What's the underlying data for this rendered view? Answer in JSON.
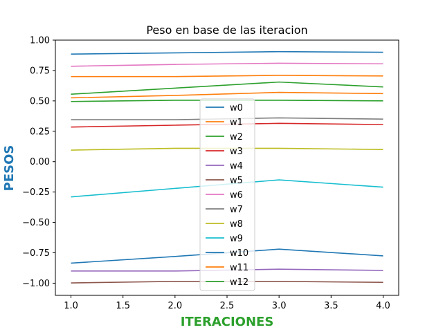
{
  "chart_data": {
    "type": "line",
    "title": "Peso en base de las iteracion",
    "xlabel": "ITERACIONES",
    "ylabel": "PESOS",
    "xlabel_color": "#2ca02c",
    "ylabel_color": "#1f77b4",
    "xlim": [
      0.85,
      4.15
    ],
    "ylim": [
      -1.1,
      1.0
    ],
    "xticks": [
      1.0,
      1.5,
      2.0,
      2.5,
      3.0,
      3.5,
      4.0
    ],
    "xtick_labels": [
      "1.0",
      "1.5",
      "2.0",
      "2.5",
      "3.0",
      "3.5",
      "4.0"
    ],
    "yticks": [
      -1.0,
      -0.75,
      -0.5,
      -0.25,
      0.0,
      0.25,
      0.5,
      0.75,
      1.0
    ],
    "ytick_labels": [
      "−1.00",
      "−0.75",
      "−0.50",
      "−0.25",
      "0.00",
      "0.25",
      "0.50",
      "0.75",
      "1.00"
    ],
    "grid": false,
    "legend_position": "center",
    "x": [
      1,
      2,
      3,
      4
    ],
    "series": [
      {
        "name": "w0",
        "color": "#1f77b4",
        "values": [
          0.885,
          0.895,
          0.905,
          0.9
        ]
      },
      {
        "name": "w1",
        "color": "#ff7f0e",
        "values": [
          0.7,
          0.7,
          0.71,
          0.705
        ]
      },
      {
        "name": "w2",
        "color": "#2ca02c",
        "values": [
          0.555,
          0.605,
          0.655,
          0.615
        ]
      },
      {
        "name": "w3",
        "color": "#d62728",
        "values": [
          0.285,
          0.3,
          0.315,
          0.305
        ]
      },
      {
        "name": "w4",
        "color": "#9467bd",
        "values": [
          -0.9,
          -0.9,
          -0.885,
          -0.895
        ]
      },
      {
        "name": "w5",
        "color": "#8c564b",
        "values": [
          -0.998,
          -0.985,
          -0.985,
          -0.993
        ]
      },
      {
        "name": "w6",
        "color": "#e377c2",
        "values": [
          0.785,
          0.8,
          0.81,
          0.805
        ]
      },
      {
        "name": "w7",
        "color": "#7f7f7f",
        "values": [
          0.345,
          0.345,
          0.36,
          0.35
        ]
      },
      {
        "name": "w8",
        "color": "#bcbd22",
        "values": [
          0.095,
          0.11,
          0.11,
          0.1
        ]
      },
      {
        "name": "w9",
        "color": "#17becf",
        "values": [
          -0.29,
          -0.22,
          -0.15,
          -0.21
        ]
      },
      {
        "name": "w10",
        "color": "#1f77b4",
        "values": [
          -0.835,
          -0.78,
          -0.72,
          -0.775
        ]
      },
      {
        "name": "w11",
        "color": "#ff7f0e",
        "values": [
          0.525,
          0.545,
          0.57,
          0.56
        ]
      },
      {
        "name": "w12",
        "color": "#2ca02c",
        "values": [
          0.495,
          0.505,
          0.505,
          0.5
        ]
      }
    ]
  }
}
